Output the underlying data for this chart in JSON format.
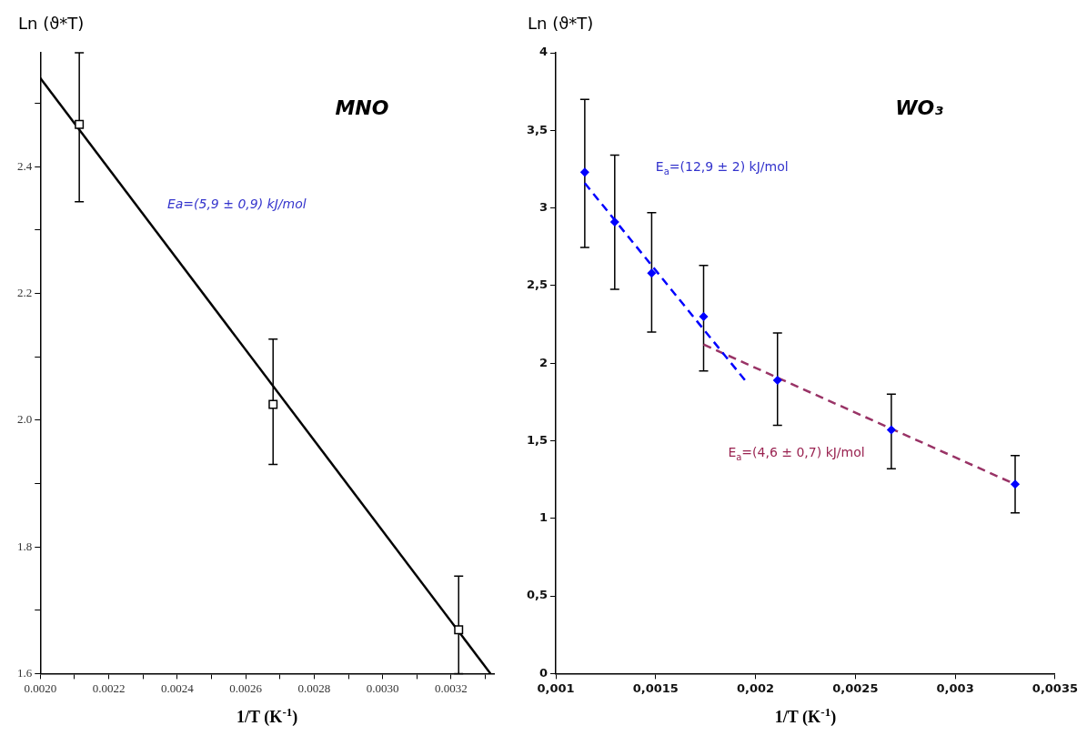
{
  "chart_data": [
    {
      "type": "scatter",
      "title": "MNO",
      "xlabel": "1/T (K$^{-1}$)",
      "ylabel": "Ln (ϑ*T)",
      "xlim": [
        0.002,
        0.003325
      ],
      "ylim": [
        1.6,
        2.58
      ],
      "xticks": [
        {
          "value": 0.002,
          "label": "0.0020"
        },
        {
          "value": 0.0021,
          "label": null
        },
        {
          "value": 0.0022,
          "label": "0.0022"
        },
        {
          "value": 0.0023,
          "label": null
        },
        {
          "value": 0.0024,
          "label": "0.0024"
        },
        {
          "value": 0.0025,
          "label": null
        },
        {
          "value": 0.0026,
          "label": "0.0026"
        },
        {
          "value": 0.0027,
          "label": null
        },
        {
          "value": 0.0028,
          "label": "0.0028"
        },
        {
          "value": 0.0029,
          "label": null
        },
        {
          "value": 0.003,
          "label": "0.0030"
        },
        {
          "value": 0.0031,
          "label": null
        },
        {
          "value": 0.0032,
          "label": "0.0032"
        },
        {
          "value": 0.0033,
          "label": null
        }
      ],
      "yticks": [
        {
          "value": 1.6,
          "label": "1.6"
        },
        {
          "value": 1.7,
          "label": null
        },
        {
          "value": 1.8,
          "label": "1.8"
        },
        {
          "value": 1.9,
          "label": null
        },
        {
          "value": 2,
          "label": "2.0"
        },
        {
          "value": 2.1,
          "label": null
        },
        {
          "value": 2.2,
          "label": "2.2"
        },
        {
          "value": 2.3,
          "label": null
        },
        {
          "value": 2.4,
          "label": "2.4"
        },
        {
          "value": 2.5,
          "label": null
        }
      ],
      "grid": false,
      "series": [
        {
          "type": "scatter",
          "color": "#000000",
          "marker": "square",
          "x": [
            0.002114,
            0.00268,
            0.003222
          ],
          "values": [
            2.467,
            2.025,
            1.669
          ],
          "errors": [
            [
              2.345,
              2.58
            ],
            [
              1.93,
              2.128
            ],
            [
              1.6,
              1.754
            ]
          ]
        },
        {
          "type": "line",
          "color": "#000000",
          "marker": "none",
          "line_style": "solid",
          "x": [
            0.002,
            0.003315
          ],
          "values": [
            2.54,
            1.6
          ]
        }
      ],
      "annotations": [
        "Ea=(5,9 ± 0,9) kJ/mol"
      ]
    },
    {
      "type": "scatter",
      "title": "WO₃",
      "xlabel": "1/T (K$^{-1}$)",
      "ylabel": "Ln (ϑ*T)",
      "xlim": [
        0.001,
        0.0035
      ],
      "ylim": [
        0,
        4
      ],
      "xticks": [
        {
          "value": 0.001,
          "label": "0,001"
        },
        {
          "value": 0.0015,
          "label": "0,0015"
        },
        {
          "value": 0.002,
          "label": "0,002"
        },
        {
          "value": 0.0025,
          "label": "0,0025"
        },
        {
          "value": 0.003,
          "label": "0,003"
        },
        {
          "value": 0.0035,
          "label": "0,0035"
        }
      ],
      "yticks": [
        0,
        {
          "value": 0.5,
          "label": "0,5"
        },
        1,
        {
          "value": 1.5,
          "label": "1,5"
        },
        2,
        {
          "value": 2.5,
          "label": "2,5"
        },
        3,
        {
          "value": 3.5,
          "label": "3,5"
        },
        4
      ],
      "grid": false,
      "series": [
        {
          "type": "scatter",
          "color": "#0000ff",
          "marker": "diamond",
          "x": [
            0.001145,
            0.001295,
            0.00148,
            0.00174,
            0.00211,
            0.00268,
            0.0033
          ],
          "values": [
            3.23,
            2.91,
            2.58,
            2.3,
            1.89,
            1.57,
            1.22
          ],
          "errors": [
            [
              2.745,
              3.7
            ],
            [
              2.476,
              3.34
            ],
            [
              2.2,
              2.97
            ],
            [
              1.95,
              2.63
            ],
            [
              1.6,
              2.195
            ],
            [
              1.32,
              1.8
            ],
            [
              1.035,
              1.405
            ]
          ]
        },
        {
          "type": "line",
          "color": "#0000ff",
          "marker": "none",
          "line_style": "dashed",
          "x": [
            0.001145,
            0.00196
          ],
          "values": [
            3.16,
            1.87
          ]
        },
        {
          "type": "line",
          "color": "#993366",
          "marker": "none",
          "line_style": "dashed",
          "x": [
            0.00174,
            0.0033
          ],
          "values": [
            2.12,
            1.22
          ]
        }
      ],
      "annotations": [
        "E$_{a}$=(12,9 ± 2) kJ/mol",
        "E$_{a}$=(4,6 ± 0,7) kJ/mol"
      ]
    }
  ]
}
